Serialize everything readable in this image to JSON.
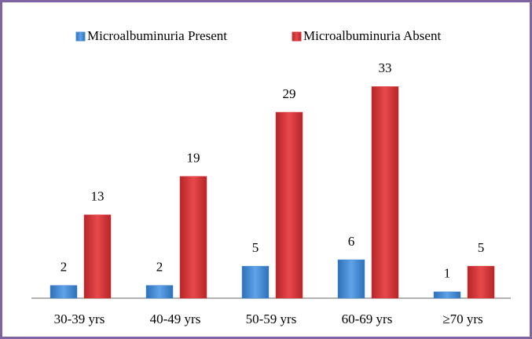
{
  "chart_data": {
    "type": "bar",
    "categories": [
      "30-39 yrs",
      "40-49 yrs",
      "50-59 yrs",
      "60-69 yrs",
      "≥70 yrs"
    ],
    "series": [
      {
        "name": "Microalbuminuria Present",
        "color": "#4a8fd6",
        "values": [
          2,
          2,
          5,
          6,
          1
        ]
      },
      {
        "name": "Microalbuminuria Absent",
        "color": "#d93a3c",
        "values": [
          13,
          19,
          29,
          33,
          5
        ]
      }
    ],
    "ylim": [
      0,
      35
    ],
    "legend": "top"
  }
}
